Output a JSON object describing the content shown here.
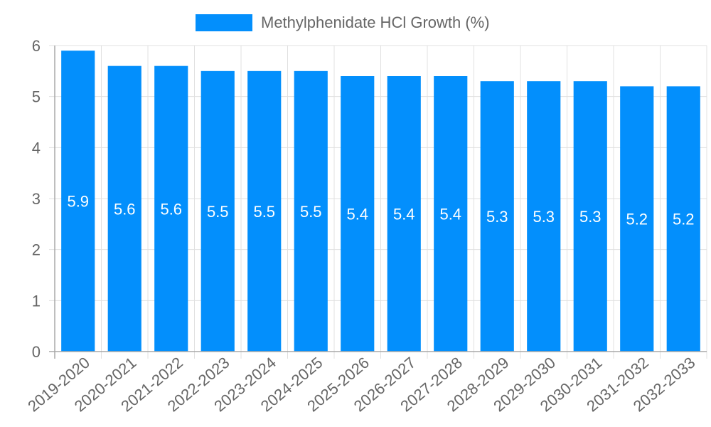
{
  "chart_data": {
    "type": "bar",
    "title": "",
    "legend": [
      "Methylphenidate HCl Growth (%)"
    ],
    "legend_position": "top",
    "xlabel": "",
    "ylabel": "",
    "ylim": [
      0,
      6
    ],
    "yticks": [
      0,
      1,
      2,
      3,
      4,
      5,
      6
    ],
    "grid": true,
    "categories": [
      "2019-2020",
      "2020-2021",
      "2021-2022",
      "2022-2023",
      "2023-2024",
      "2024-2025",
      "2025-2026",
      "2026-2027",
      "2027-2028",
      "2028-2029",
      "2029-2030",
      "2030-2031",
      "2031-2032",
      "2032-2033"
    ],
    "series": [
      {
        "name": "Methylphenidate HCl Growth (%)",
        "color": "#038ffc",
        "values": [
          5.9,
          5.6,
          5.6,
          5.5,
          5.5,
          5.5,
          5.4,
          5.4,
          5.4,
          5.3,
          5.3,
          5.3,
          5.2,
          5.2
        ]
      }
    ],
    "data_labels": true
  },
  "legend": {
    "label": "Methylphenidate HCl Growth (%)",
    "color": "#038ffc"
  },
  "colors": {
    "bar": "#038ffc",
    "grid": "#e0e0e0",
    "axis": "#a8a8a8",
    "tick_text": "#666666",
    "data_label": "#ffffff"
  }
}
